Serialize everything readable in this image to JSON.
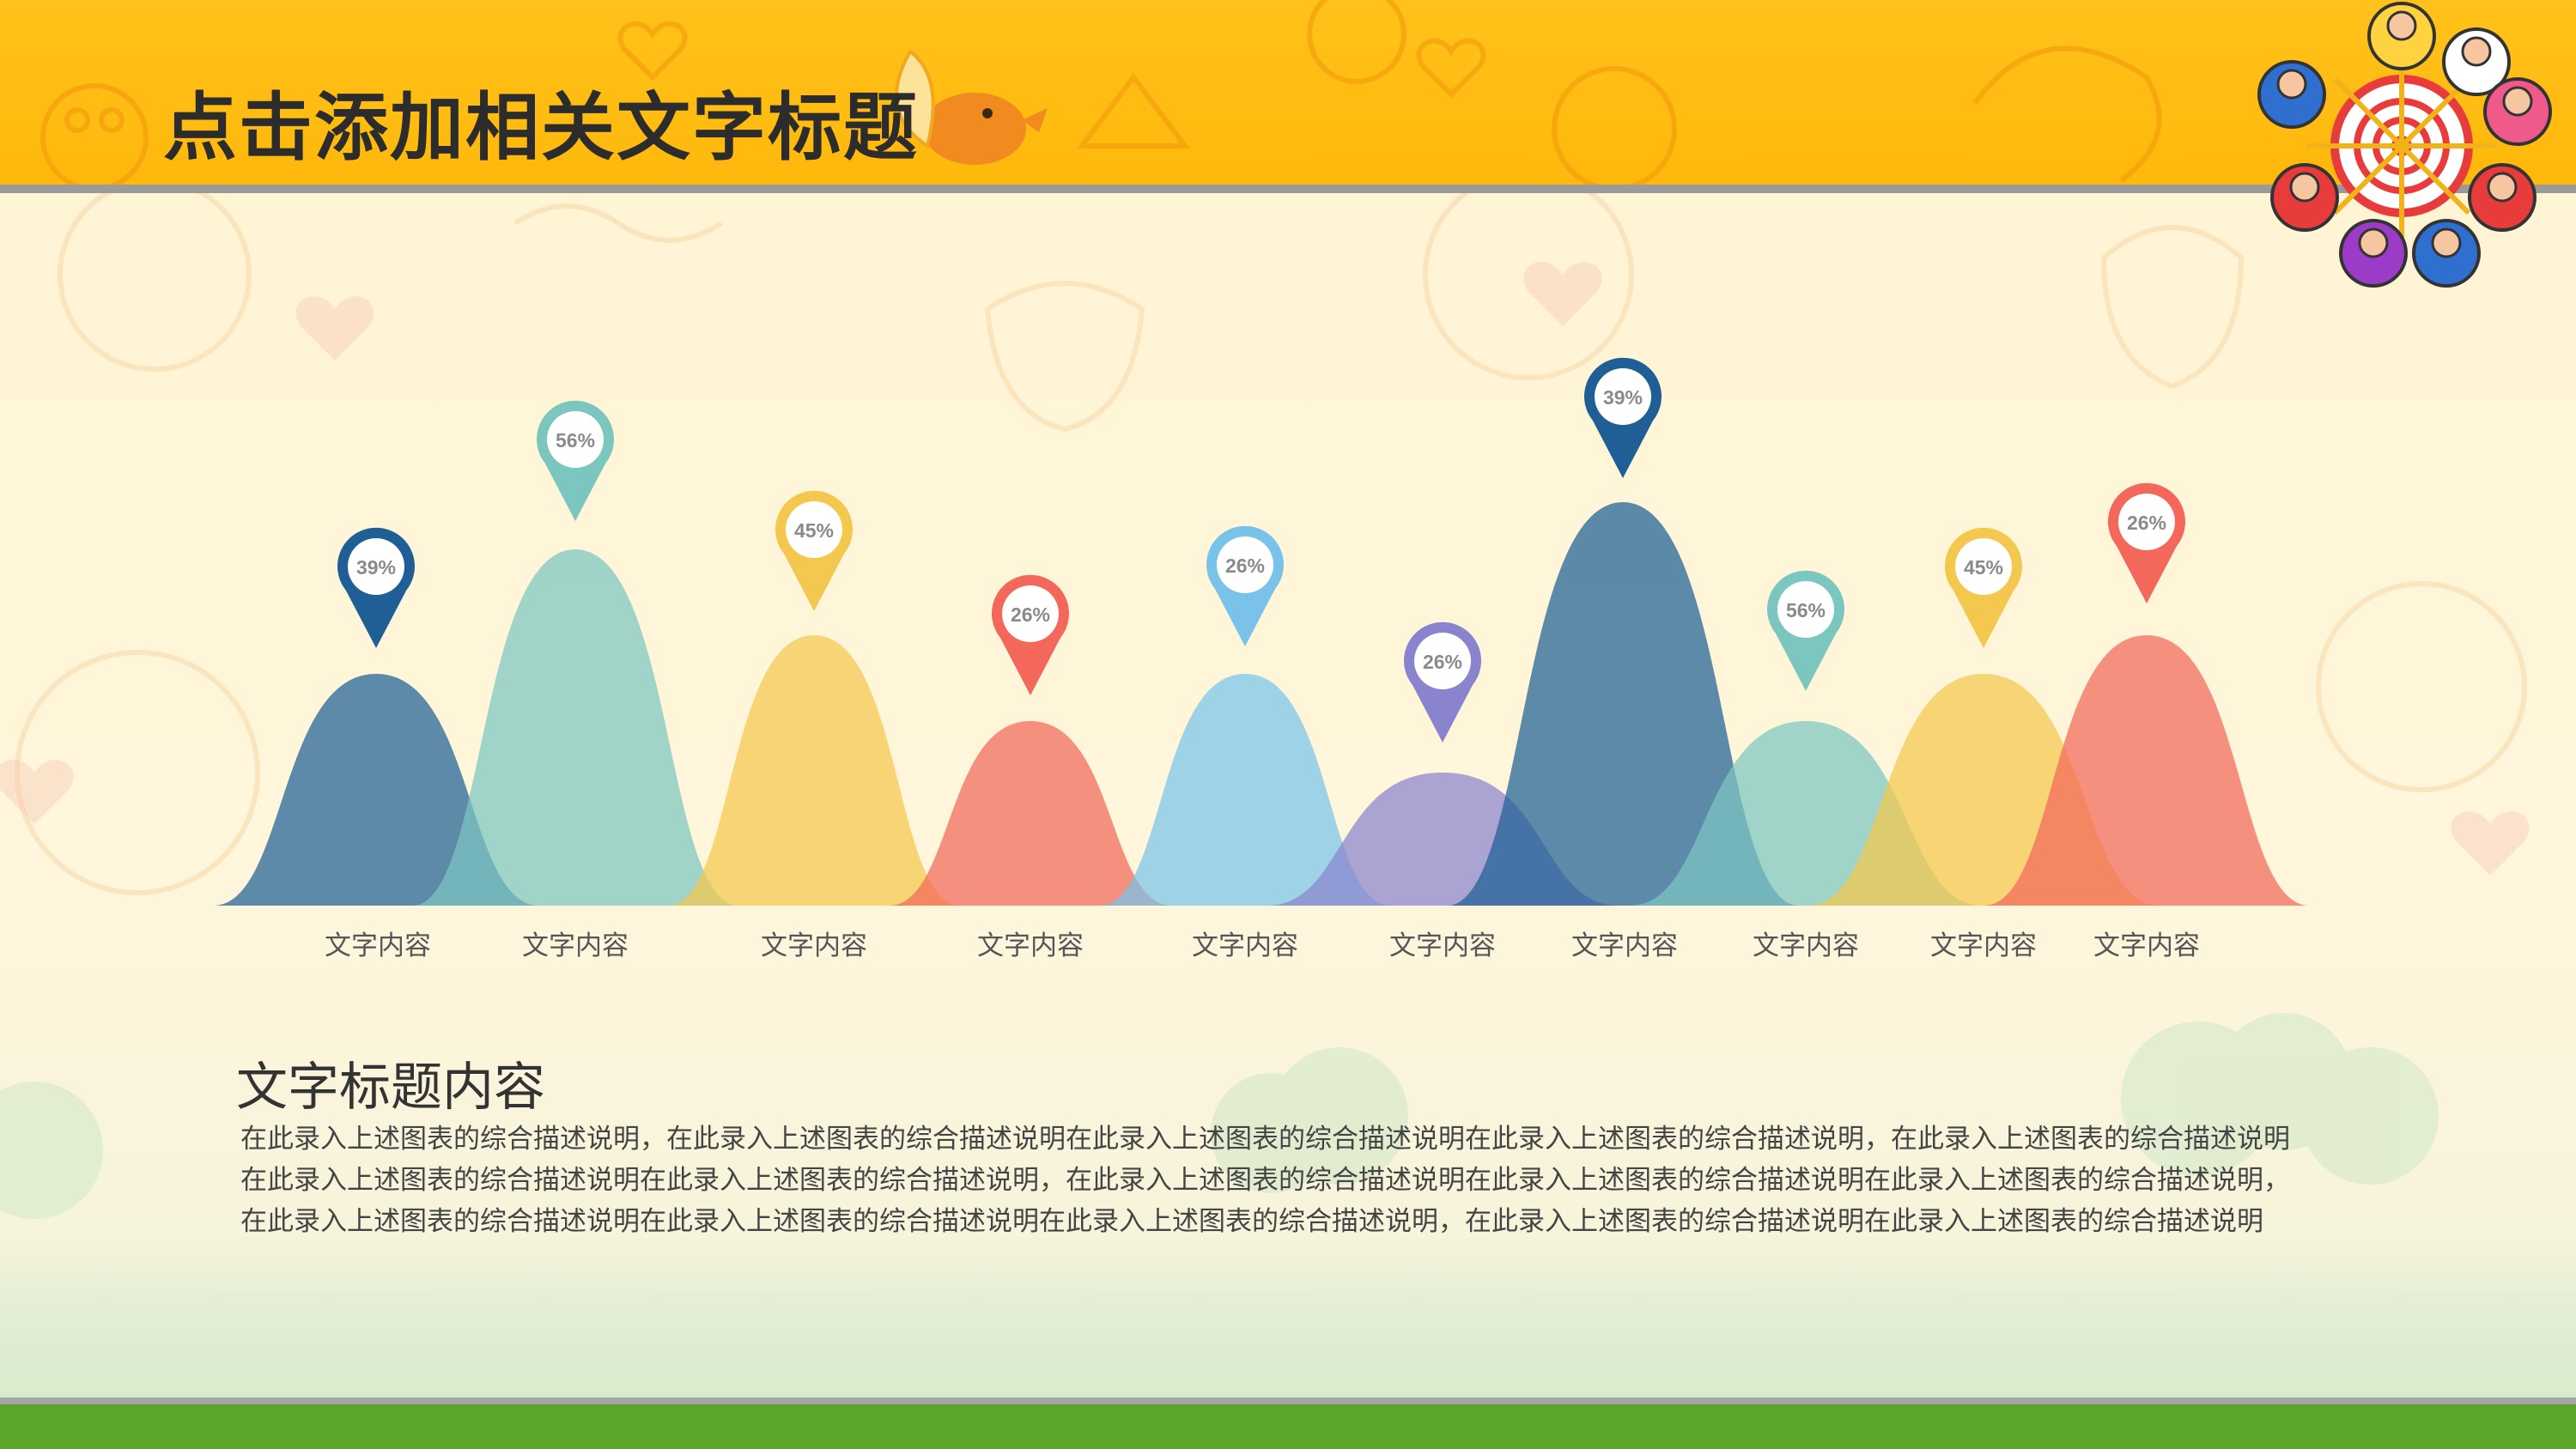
{
  "header": {
    "title": "点击添加相关文字标题"
  },
  "colors": {
    "header": "#ffbe14",
    "footer": "#5aa52a",
    "navy": "#1f5f96",
    "teal": "#7cc6c0",
    "yellow": "#f4c84e",
    "coral": "#f3685a",
    "sky": "#79c3ea",
    "purple": "#8a84cf"
  },
  "chart_data": {
    "type": "area",
    "categories": [
      "文字内容",
      "文字内容",
      "文字内容",
      "文字内容",
      "文字内容",
      "文字内容",
      "文字内容",
      "文字内容",
      "文字内容",
      "文字内容"
    ],
    "values": [
      39,
      56,
      45,
      26,
      26,
      26,
      39,
      56,
      45,
      26
    ],
    "labels": [
      "39%",
      "56%",
      "45%",
      "26%",
      "26%",
      "26%",
      "39%",
      "56%",
      "45%",
      "26%"
    ],
    "colors": [
      "#1f5f96",
      "#7cc6c0",
      "#f4c84e",
      "#f3685a",
      "#79c3ea",
      "#8a84cf",
      "#1f5f96",
      "#7cc6c0",
      "#f4c84e",
      "#f3685a"
    ],
    "grid": false,
    "legend": "none"
  },
  "section": {
    "title": "文字标题内容",
    "body": "在此录入上述图表的综合描述说明，在此录入上述图表的综合描述说明在此录入上述图表的综合描述说明在此录入上述图表的综合描述说明，在此录入上述图表的综合描述说明在此录入上述图表的综合描述说明在此录入上述图表的综合描述说明，在此录入上述图表的综合描述说明在此录入上述图表的综合描述说明在此录入上述图表的综合描述说明，在此录入上述图表的综合描述说明在此录入上述图表的综合描述说明在此录入上述图表的综合描述说明，在此录入上述图表的综合描述说明在此录入上述图表的综合描述说明"
  }
}
